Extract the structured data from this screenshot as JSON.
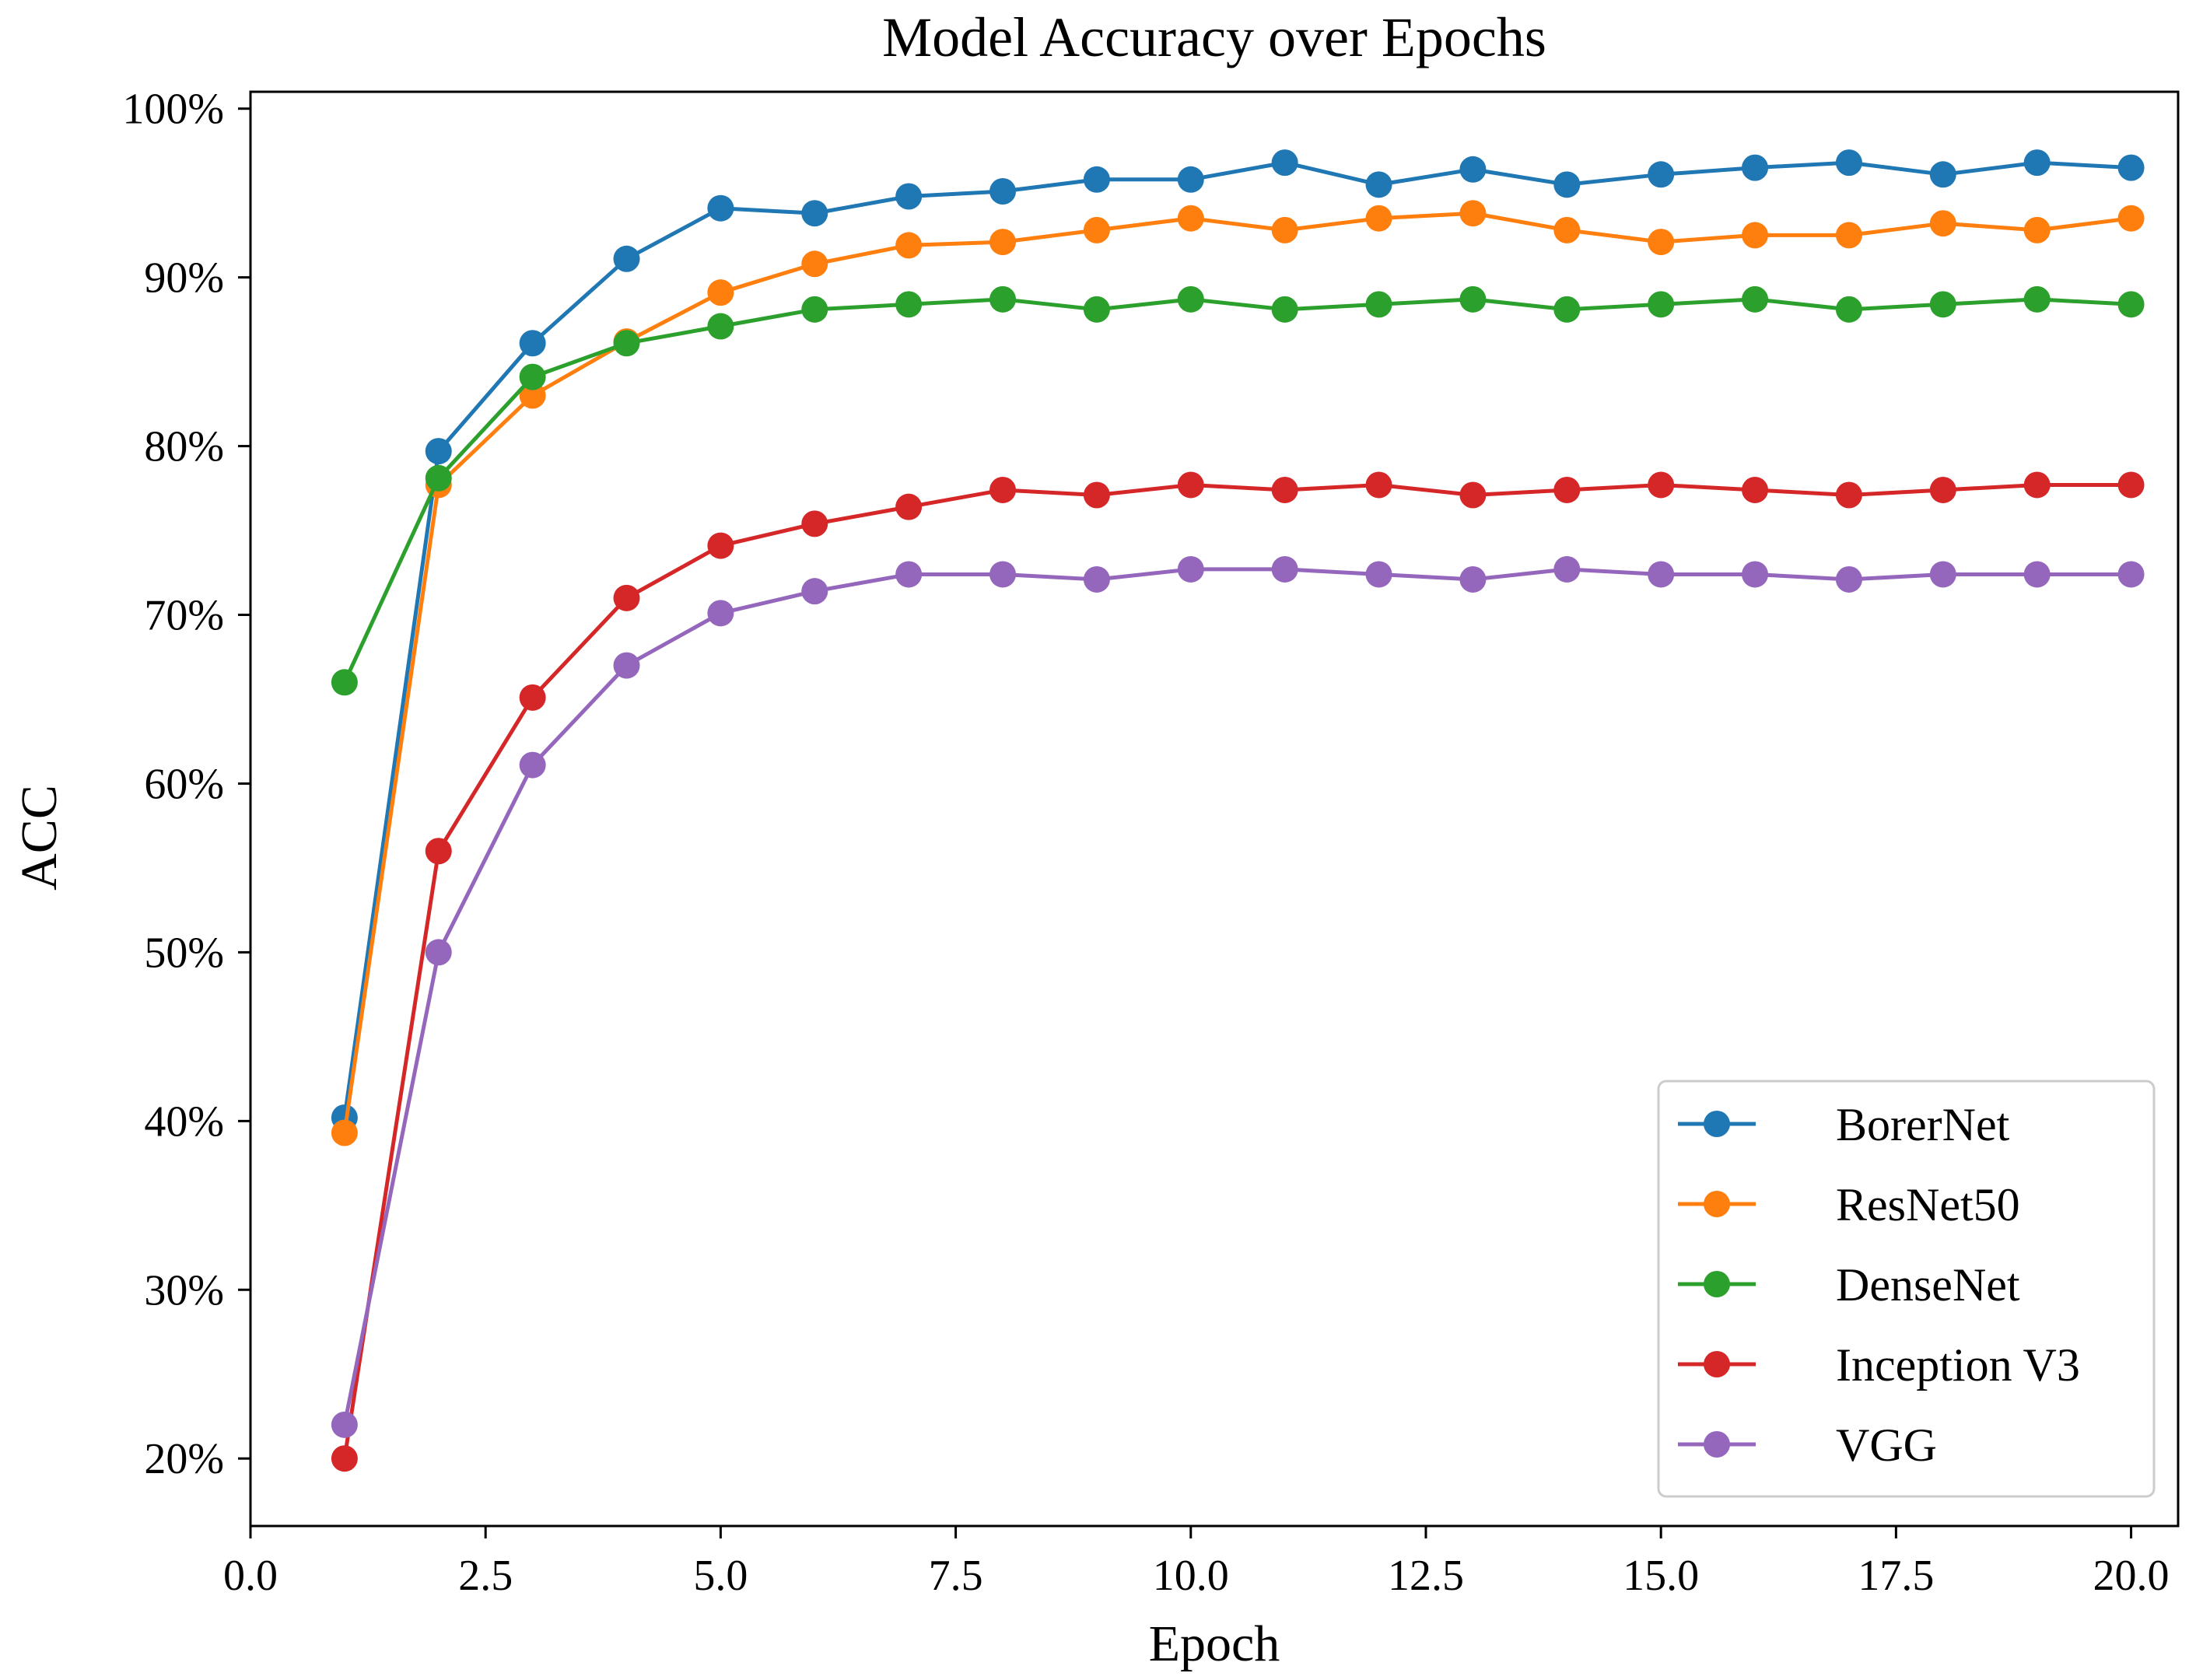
{
  "chart_data": {
    "type": "line",
    "title": "Model Accuracy over Epochs",
    "xlabel": "Epoch",
    "ylabel": "ACC",
    "xlim": [
      0,
      20.5
    ],
    "ylim": [
      16,
      101
    ],
    "x_ticks": [
      0.0,
      2.5,
      5.0,
      7.5,
      10.0,
      12.5,
      15.0,
      17.5,
      20.0
    ],
    "x_tick_labels": [
      "0.0",
      "2.5",
      "5.0",
      "7.5",
      "10.0",
      "12.5",
      "15.0",
      "17.5",
      "20.0"
    ],
    "y_ticks": [
      20,
      30,
      40,
      50,
      60,
      70,
      80,
      90,
      100
    ],
    "y_tick_labels": [
      "20%",
      "30%",
      "40%",
      "50%",
      "60%",
      "70%",
      "80%",
      "90%",
      "100%"
    ],
    "grid": false,
    "legend_position": "lower-right",
    "x": [
      1,
      2,
      3,
      4,
      5,
      6,
      7,
      8,
      9,
      10,
      11,
      12,
      13,
      14,
      15,
      16,
      17,
      18,
      19,
      20
    ],
    "series": [
      {
        "name": "BorerNet",
        "color": "#1f77b4",
        "values": [
          40.2,
          79.7,
          86.1,
          91.1,
          94.1,
          93.8,
          94.8,
          95.1,
          95.8,
          95.8,
          96.8,
          95.5,
          96.4,
          95.5,
          96.1,
          96.5,
          96.8,
          96.1,
          96.8,
          96.5
        ]
      },
      {
        "name": "ResNet50",
        "color": "#ff7f0e",
        "values": [
          39.3,
          77.7,
          83.0,
          86.2,
          89.1,
          90.8,
          91.9,
          92.1,
          92.8,
          93.5,
          92.8,
          93.5,
          93.8,
          92.8,
          92.1,
          92.5,
          92.5,
          93.2,
          92.8,
          93.5
        ]
      },
      {
        "name": "DenseNet",
        "color": "#2ca02c",
        "values": [
          66.0,
          78.1,
          84.1,
          86.1,
          87.1,
          88.1,
          88.4,
          88.7,
          88.1,
          88.7,
          88.1,
          88.4,
          88.7,
          88.1,
          88.4,
          88.7,
          88.1,
          88.4,
          88.7,
          88.4
        ]
      },
      {
        "name": "Inception V3",
        "color": "#d62728",
        "values": [
          20.0,
          56.0,
          65.1,
          71.0,
          74.1,
          75.4,
          76.4,
          77.4,
          77.1,
          77.7,
          77.4,
          77.7,
          77.1,
          77.4,
          77.7,
          77.4,
          77.1,
          77.4,
          77.7,
          77.7
        ]
      },
      {
        "name": "VGG",
        "color": "#9467bd",
        "values": [
          22.0,
          50.0,
          61.1,
          67.0,
          70.1,
          71.4,
          72.4,
          72.4,
          72.1,
          72.7,
          72.7,
          72.4,
          72.1,
          72.7,
          72.4,
          72.4,
          72.1,
          72.4,
          72.4,
          72.4
        ]
      }
    ]
  }
}
